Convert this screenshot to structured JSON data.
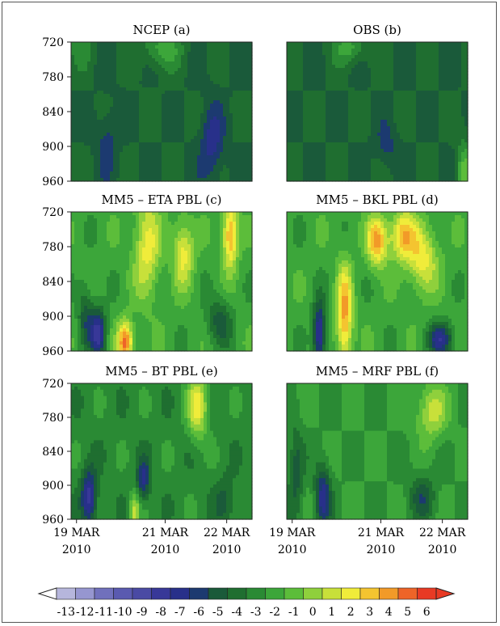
{
  "chart_data": [
    {
      "type": "heatmap",
      "title": "NCEP (a)",
      "y_ticks": [
        "720",
        "780",
        "840",
        "900",
        "960"
      ],
      "ylim": [
        960,
        720
      ],
      "x_ticks": [],
      "field": "uniform dark green (-4 to -5) with blue cells (-6 to -7) near 880-920 at ~1/4 and ~3/4 of period; yellow-green contours near 720",
      "blobs": [
        {
          "t": 0.5,
          "p": 730,
          "v": -2,
          "st": 0.08,
          "sp": 25
        },
        {
          "t": 0.2,
          "p": 890,
          "v": -6,
          "st": 0.04,
          "sp": 40
        },
        {
          "t": 0.78,
          "p": 895,
          "v": -7,
          "st": 0.045,
          "sp": 45
        },
        {
          "t": 0.05,
          "p": 720,
          "v": -3,
          "st": 0.05,
          "sp": 30
        }
      ],
      "base": -4.5
    },
    {
      "type": "heatmap",
      "title": "OBS (b)",
      "y_ticks": [],
      "ylim": [
        960,
        720
      ],
      "x_ticks": [],
      "blobs": [
        {
          "t": 0.35,
          "p": 730,
          "v": -2,
          "st": 0.06,
          "sp": 20
        },
        {
          "t": 0.55,
          "p": 900,
          "v": -6,
          "st": 0.04,
          "sp": 25
        },
        {
          "t": 0.98,
          "p": 950,
          "v": -1,
          "st": 0.03,
          "sp": 40
        }
      ],
      "base": -4.5
    },
    {
      "type": "heatmap",
      "title": "MM5  – ETA PBL (c)",
      "y_ticks": [
        "720",
        "780",
        "840",
        "900",
        "960"
      ],
      "ylim": [
        960,
        720
      ],
      "x_ticks": [],
      "blobs": [
        {
          "t": 0.42,
          "p": 780,
          "v": 2,
          "st": 0.05,
          "sp": 60
        },
        {
          "t": 0.3,
          "p": 945,
          "v": 5,
          "st": 0.03,
          "sp": 25
        },
        {
          "t": 0.88,
          "p": 760,
          "v": 4,
          "st": 0.03,
          "sp": 40
        },
        {
          "t": 0.62,
          "p": 790,
          "v": 2,
          "st": 0.04,
          "sp": 40
        },
        {
          "t": 0.15,
          "p": 930,
          "v": -8,
          "st": 0.03,
          "sp": 30
        },
        {
          "t": 0.08,
          "p": 900,
          "v": -5,
          "st": 0.03,
          "sp": 40
        },
        {
          "t": 0.82,
          "p": 910,
          "v": -5,
          "st": 0.05,
          "sp": 30
        }
      ],
      "base": -2
    },
    {
      "type": "heatmap",
      "title": "MM5  – BKL PBL (d)",
      "y_ticks": [],
      "ylim": [
        960,
        720
      ],
      "x_ticks": [],
      "blobs": [
        {
          "t": 0.32,
          "p": 900,
          "v": 4,
          "st": 0.03,
          "sp": 60
        },
        {
          "t": 0.5,
          "p": 770,
          "v": 4,
          "st": 0.04,
          "sp": 30
        },
        {
          "t": 0.64,
          "p": 760,
          "v": 3,
          "st": 0.05,
          "sp": 30
        },
        {
          "t": 0.75,
          "p": 800,
          "v": 2,
          "st": 0.06,
          "sp": 40
        },
        {
          "t": 0.18,
          "p": 930,
          "v": -8,
          "st": 0.025,
          "sp": 40
        },
        {
          "t": 0.85,
          "p": 940,
          "v": -7,
          "st": 0.05,
          "sp": 20
        }
      ],
      "base": -2
    },
    {
      "type": "heatmap",
      "title": "MM5  – BT PBL (e)",
      "y_ticks": [
        "720",
        "780",
        "840",
        "900",
        "960"
      ],
      "ylim": [
        960,
        720
      ],
      "x_ticks": [
        "19 MAR 2010",
        "21 MAR 2010",
        "22 MAR 2010"
      ],
      "blobs": [
        {
          "t": 0.7,
          "p": 760,
          "v": 2,
          "st": 0.04,
          "sp": 40
        },
        {
          "t": 0.35,
          "p": 950,
          "v": 1,
          "st": 0.02,
          "sp": 25
        },
        {
          "t": 0.1,
          "p": 920,
          "v": -8,
          "st": 0.03,
          "sp": 35
        },
        {
          "t": 0.4,
          "p": 890,
          "v": -7,
          "st": 0.025,
          "sp": 25
        },
        {
          "t": 0.85,
          "p": 930,
          "v": -5,
          "st": 0.04,
          "sp": 30
        }
      ],
      "base": -3
    },
    {
      "type": "heatmap",
      "title": "MM5  – MRF PBL (f)",
      "y_ticks": [],
      "ylim": [
        960,
        720
      ],
      "x_ticks": [
        "19 MAR 2010",
        "21 MAR 2010",
        "22 MAR 2010"
      ],
      "blobs": [
        {
          "t": 0.8,
          "p": 770,
          "v": 1,
          "st": 0.06,
          "sp": 35
        },
        {
          "t": 0.2,
          "p": 920,
          "v": -7,
          "st": 0.03,
          "sp": 40
        },
        {
          "t": 0.05,
          "p": 880,
          "v": -5,
          "st": 0.03,
          "sp": 60
        },
        {
          "t": 0.75,
          "p": 920,
          "v": -5,
          "st": 0.05,
          "sp": 30
        }
      ],
      "base": -2.5
    }
  ],
  "colorbar": {
    "labels": [
      "-13",
      "-12",
      "-11",
      "-10",
      "-9",
      "-8",
      "-7",
      "-6",
      "-5",
      "-4",
      "-3",
      "-2",
      "-1",
      "0",
      "1",
      "2",
      "3",
      "4",
      "5",
      "6"
    ],
    "colors": [
      "#b6b6dc",
      "#9696d0",
      "#7070bc",
      "#5a5ab0",
      "#4a4aa4",
      "#383898",
      "#28308a",
      "#1c3a70",
      "#1a5a3a",
      "#1f6e30",
      "#2a8a34",
      "#3ca63a",
      "#5cbd3a",
      "#8fd03c",
      "#c8e03a",
      "#f0ec3a",
      "#f4c430",
      "#f29a28",
      "#ee6428",
      "#e83a24"
    ],
    "left_arrow_color": "#ffffff",
    "right_arrow_color": "#e83a24"
  }
}
